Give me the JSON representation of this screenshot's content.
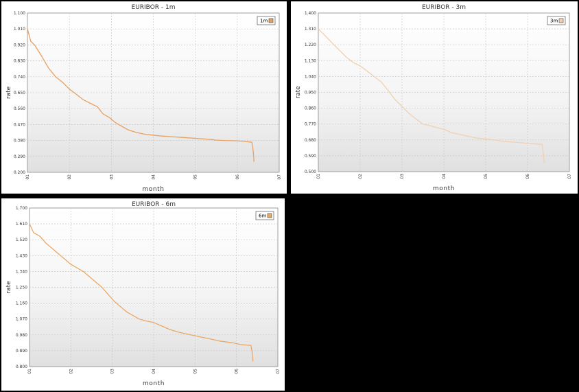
{
  "chart_data": [
    {
      "type": "line",
      "title": "EURIBOR - 1m",
      "xlabel": "month",
      "ylabel": "rate",
      "x_ticks": [
        "01",
        "02",
        "03",
        "04",
        "05",
        "06",
        "07"
      ],
      "y_ticks": [
        "0.200",
        "0.290",
        "0.380",
        "0.470",
        "0.560",
        "0.650",
        "0.740",
        "0.830",
        "0.920",
        "1.010",
        "1.100"
      ],
      "xlim": [
        1,
        7
      ],
      "ylim": [
        0.2,
        1.1
      ],
      "grid": true,
      "legend_position": "top-right",
      "series": [
        {
          "name": "1m",
          "color": "#e8a060",
          "x": [
            1.0,
            1.08,
            1.17,
            1.33,
            1.5,
            1.67,
            1.83,
            2.0,
            2.17,
            2.33,
            2.5,
            2.67,
            2.8,
            2.95,
            3.1,
            3.25,
            3.4,
            3.6,
            3.8,
            4.0,
            4.2,
            4.5,
            4.8,
            5.0,
            5.3,
            5.5,
            5.7,
            6.0,
            6.2,
            6.35,
            6.38,
            6.4
          ],
          "y": [
            1.01,
            0.94,
            0.92,
            0.86,
            0.79,
            0.74,
            0.71,
            0.67,
            0.64,
            0.61,
            0.59,
            0.57,
            0.53,
            0.51,
            0.48,
            0.46,
            0.44,
            0.425,
            0.415,
            0.41,
            0.405,
            0.4,
            0.395,
            0.392,
            0.387,
            0.382,
            0.38,
            0.378,
            0.374,
            0.37,
            0.32,
            0.26
          ]
        }
      ]
    },
    {
      "type": "line",
      "title": "EURIBOR - 3m",
      "xlabel": "month",
      "ylabel": "rate",
      "x_ticks": [
        "01",
        "02",
        "03",
        "04",
        "05",
        "06",
        "07"
      ],
      "y_ticks": [
        "0.500",
        "0.590",
        "0.680",
        "0.770",
        "0.860",
        "0.950",
        "1.040",
        "1.130",
        "1.220",
        "1.310",
        "1.400"
      ],
      "xlim": [
        1,
        7
      ],
      "ylim": [
        0.5,
        1.4
      ],
      "grid": true,
      "legend_position": "top-right",
      "series": [
        {
          "name": "3m",
          "color": "#f2cfb0",
          "x": [
            1.0,
            1.17,
            1.33,
            1.5,
            1.67,
            1.83,
            2.0,
            2.17,
            2.33,
            2.5,
            2.67,
            2.83,
            3.0,
            3.17,
            3.33,
            3.5,
            3.67,
            3.83,
            4.0,
            4.2,
            4.4,
            4.6,
            4.8,
            5.0,
            5.2,
            5.5,
            5.8,
            6.0,
            6.2,
            6.35,
            6.38,
            6.4
          ],
          "y": [
            1.31,
            1.27,
            1.23,
            1.19,
            1.15,
            1.12,
            1.1,
            1.07,
            1.04,
            1.01,
            0.96,
            0.91,
            0.87,
            0.83,
            0.8,
            0.77,
            0.76,
            0.75,
            0.74,
            0.72,
            0.71,
            0.7,
            0.69,
            0.685,
            0.68,
            0.67,
            0.665,
            0.66,
            0.657,
            0.655,
            0.6,
            0.55
          ]
        }
      ]
    },
    {
      "type": "line",
      "title": "EURIBOR - 6m",
      "xlabel": "month",
      "ylabel": "rate",
      "x_ticks": [
        "01",
        "02",
        "03",
        "04",
        "05",
        "06",
        "07"
      ],
      "y_ticks": [
        "0.800",
        "0.890",
        "0.980",
        "1.070",
        "1.160",
        "1.250",
        "1.340",
        "1.430",
        "1.520",
        "1.610",
        "1.700"
      ],
      "xlim": [
        1,
        7
      ],
      "ylim": [
        0.8,
        1.7
      ],
      "grid": true,
      "legend_position": "top-right",
      "series": [
        {
          "name": "6m",
          "color": "#eaa866",
          "x": [
            1.0,
            1.1,
            1.25,
            1.4,
            1.55,
            1.7,
            1.85,
            2.0,
            2.15,
            2.3,
            2.45,
            2.6,
            2.75,
            2.9,
            3.05,
            3.2,
            3.35,
            3.5,
            3.65,
            3.8,
            4.0,
            4.2,
            4.4,
            4.6,
            4.8,
            5.0,
            5.3,
            5.6,
            5.9,
            6.1,
            6.35,
            6.38,
            6.4
          ],
          "y": [
            1.61,
            1.56,
            1.54,
            1.5,
            1.47,
            1.44,
            1.41,
            1.38,
            1.36,
            1.34,
            1.31,
            1.28,
            1.25,
            1.21,
            1.17,
            1.14,
            1.11,
            1.09,
            1.07,
            1.06,
            1.05,
            1.03,
            1.01,
            0.995,
            0.985,
            0.975,
            0.96,
            0.945,
            0.935,
            0.925,
            0.92,
            0.88,
            0.83
          ]
        }
      ]
    }
  ]
}
